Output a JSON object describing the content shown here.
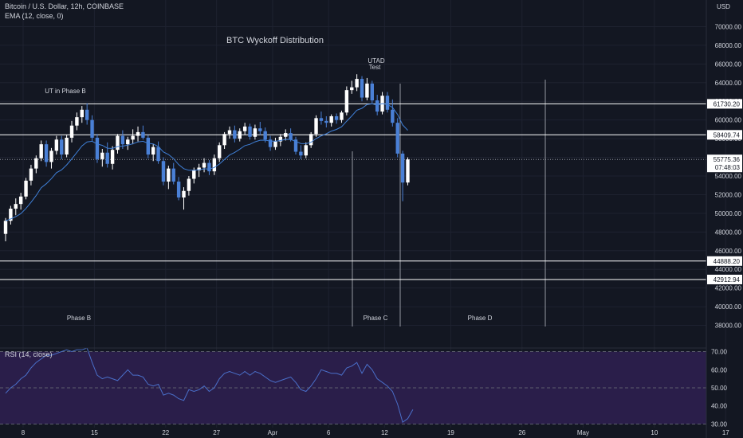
{
  "header": {
    "symbol_line": "Bitcoin / U.S. Dollar, 12h, COINBASE",
    "ema_line": "EMA (12, close, 0)",
    "currency": "USD",
    "rsi_label": "RSI (14, close)"
  },
  "colors": {
    "background": "#131722",
    "grid": "#1e2230",
    "up_candle": "#ffffff",
    "down_candle": "#4a80d6",
    "ema": "#3f7fd6",
    "rsi_line": "#4a6fc9",
    "rsi_band": "#2a1e4a",
    "level_line": "#ffffff",
    "text": "#d1d4dc"
  },
  "chart_data": [
    {
      "type": "candlestick",
      "title": "BTC Wyckoff Distribution",
      "ylim": [
        36000,
        72000
      ],
      "y_ticks": [
        38000,
        40000,
        42000,
        44000,
        46000,
        48000,
        50000,
        52000,
        54000,
        56000,
        58000,
        60000,
        62000,
        64000,
        66000,
        68000,
        70000
      ],
      "x_ticks": [
        "8",
        "15",
        "22",
        "27",
        "Apr",
        "6",
        "12",
        "19",
        "26",
        "May",
        "10",
        "17"
      ],
      "x_tick_bar_index": [
        0,
        14,
        28,
        38,
        49,
        60,
        71,
        84,
        98,
        110,
        124,
        138
      ],
      "grid": true,
      "horizontal_levels": [
        {
          "value": 61730.2,
          "label": "61730.20"
        },
        {
          "value": 58409.74,
          "label": "58409.74"
        },
        {
          "value": 44888.2,
          "label": "44888.20"
        },
        {
          "value": 42912.94,
          "label": "42912.94"
        }
      ],
      "last_price": {
        "value": 55775.36,
        "label": "55775.36",
        "countdown": "07:48:03"
      },
      "candles": [
        [
          47800,
          49500,
          47000,
          49200
        ],
        [
          49200,
          50800,
          48800,
          50500
        ],
        [
          50500,
          51600,
          49800,
          51000
        ],
        [
          51000,
          52200,
          50400,
          51800
        ],
        [
          51800,
          53800,
          51500,
          53500
        ],
        [
          53500,
          55200,
          53000,
          54800
        ],
        [
          54800,
          56200,
          54300,
          55900
        ],
        [
          55900,
          57800,
          55600,
          57400
        ],
        [
          57400,
          57800,
          55000,
          55500
        ],
        [
          55500,
          57000,
          54800,
          56700
        ],
        [
          56700,
          58300,
          56300,
          57900
        ],
        [
          57900,
          58300,
          55800,
          56300
        ],
        [
          56300,
          58400,
          56000,
          58100
        ],
        [
          58100,
          59900,
          57600,
          59400
        ],
        [
          59400,
          60800,
          58900,
          60300
        ],
        [
          60300,
          61500,
          59700,
          61100
        ],
        [
          61100,
          61800,
          59500,
          60000
        ],
        [
          60000,
          60500,
          57700,
          58100
        ],
        [
          58100,
          58500,
          55400,
          55800
        ],
        [
          55800,
          56900,
          55000,
          56500
        ],
        [
          56500,
          57600,
          54900,
          55300
        ],
        [
          55300,
          57200,
          54700,
          56800
        ],
        [
          56800,
          58500,
          56400,
          58300
        ],
        [
          58300,
          58900,
          56900,
          57400
        ],
        [
          57400,
          58200,
          56800,
          57900
        ],
        [
          57900,
          59000,
          57400,
          58300
        ],
        [
          58300,
          59300,
          57700,
          58700
        ],
        [
          58700,
          59400,
          57900,
          58100
        ],
        [
          58100,
          58400,
          55900,
          56300
        ],
        [
          56300,
          57400,
          55600,
          57100
        ],
        [
          57100,
          57700,
          55300,
          55600
        ],
        [
          55600,
          56000,
          53000,
          53400
        ],
        [
          53400,
          55100,
          52600,
          54800
        ],
        [
          54800,
          55400,
          53100,
          53400
        ],
        [
          53400,
          53900,
          51400,
          51700
        ],
        [
          51700,
          52800,
          50400,
          52400
        ],
        [
          52400,
          54000,
          51900,
          53700
        ],
        [
          53700,
          54900,
          53200,
          54600
        ],
        [
          54600,
          55300,
          53900,
          54900
        ],
        [
          54900,
          55900,
          54400,
          55400
        ],
        [
          55400,
          55700,
          54100,
          54500
        ],
        [
          54500,
          56300,
          54100,
          55900
        ],
        [
          55900,
          57600,
          55500,
          57300
        ],
        [
          57300,
          58700,
          56900,
          58500
        ],
        [
          58500,
          59300,
          58000,
          58900
        ],
        [
          58900,
          59400,
          57600,
          58000
        ],
        [
          58000,
          59100,
          57700,
          58800
        ],
        [
          58800,
          59700,
          58400,
          59300
        ],
        [
          59300,
          59600,
          57900,
          58200
        ],
        [
          58200,
          59500,
          57900,
          59100
        ],
        [
          59100,
          59800,
          58400,
          58800
        ],
        [
          58800,
          59200,
          57600,
          57900
        ],
        [
          57900,
          58300,
          56700,
          57100
        ],
        [
          57100,
          58100,
          56800,
          57700
        ],
        [
          57700,
          58500,
          57200,
          58200
        ],
        [
          58200,
          59000,
          57800,
          58600
        ],
        [
          58600,
          59100,
          57700,
          57900
        ],
        [
          57900,
          58200,
          56300,
          56600
        ],
        [
          56600,
          57300,
          55800,
          56200
        ],
        [
          56200,
          57600,
          55900,
          57300
        ],
        [
          57300,
          58700,
          57000,
          58500
        ],
        [
          58500,
          60500,
          58200,
          60200
        ],
        [
          60200,
          60900,
          59500,
          59900
        ],
        [
          59900,
          60400,
          59200,
          59700
        ],
        [
          59700,
          60600,
          59300,
          60400
        ],
        [
          60400,
          60700,
          59600,
          60000
        ],
        [
          60000,
          61000,
          59700,
          60800
        ],
        [
          60800,
          63600,
          60500,
          63200
        ],
        [
          63200,
          64200,
          62800,
          63500
        ],
        [
          63500,
          64900,
          63100,
          64400
        ],
        [
          64400,
          64700,
          62000,
          62400
        ],
        [
          62400,
          64500,
          62100,
          63900
        ],
        [
          63900,
          64200,
          61800,
          62100
        ],
        [
          62100,
          62700,
          60500,
          60900
        ],
        [
          60900,
          63000,
          60600,
          62600
        ],
        [
          62600,
          63000,
          60800,
          61100
        ],
        [
          61100,
          62200,
          59300,
          59700
        ],
        [
          59700,
          60200,
          56000,
          56400
        ],
        [
          56400,
          56700,
          51300,
          53300
        ],
        [
          53300,
          56000,
          53000,
          55775
        ]
      ],
      "ema_length": 12,
      "phases": [
        "Phase B",
        "Phase C",
        "Phase D"
      ],
      "annotations": [
        "UT in Phase B",
        "UTAD",
        "Test"
      ]
    },
    {
      "type": "line",
      "title": "RSI (14, close)",
      "ylim": [
        28,
        72
      ],
      "y_ticks": [
        30.0,
        40.0,
        50.0,
        60.0,
        70.0
      ],
      "y_tick_labels": [
        "30.00",
        "40.00",
        "50.00",
        "60.00",
        "70.00"
      ],
      "band": [
        30,
        70
      ],
      "series": [
        {
          "values": [
            47,
            50,
            52,
            55,
            57,
            61,
            64,
            66,
            68,
            68,
            69,
            70,
            71,
            70,
            71,
            71,
            72,
            64,
            57,
            55,
            56,
            55,
            54,
            57,
            60,
            57,
            57,
            56,
            52,
            51,
            52,
            46,
            47,
            46,
            44,
            43,
            49,
            48,
            49,
            51,
            48,
            50,
            55,
            58,
            59,
            58,
            57,
            59,
            57,
            59,
            58,
            56,
            54,
            53,
            54,
            55,
            56,
            53,
            49,
            48,
            51,
            55,
            60,
            59,
            58,
            58,
            57,
            61,
            62,
            64,
            58,
            63,
            60,
            55,
            53,
            51,
            48,
            41,
            31,
            33,
            38
          ]
        }
      ]
    }
  ]
}
